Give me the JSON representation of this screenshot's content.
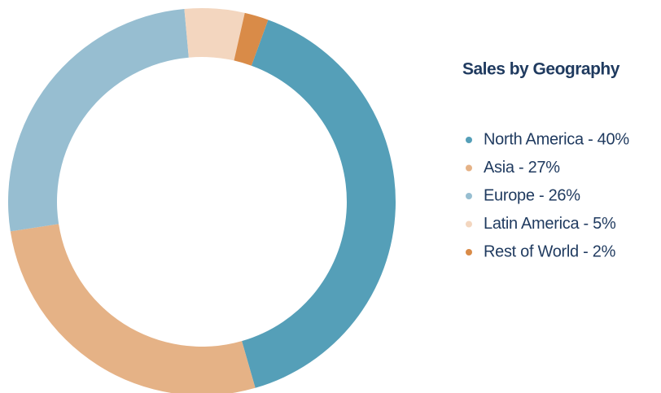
{
  "chart_data": {
    "type": "pie",
    "title": "Sales by Geography",
    "categories": [
      "North America - 40%",
      "Asia - 27%",
      "Europe - 26%",
      "Latin America - 5%",
      "Rest of World - 2%"
    ],
    "values": [
      40,
      27,
      26,
      5,
      2
    ],
    "colors": [
      "#559fb8",
      "#e5b286",
      "#97bed1",
      "#f3d6bf",
      "#d98b48"
    ],
    "legend": "right"
  }
}
